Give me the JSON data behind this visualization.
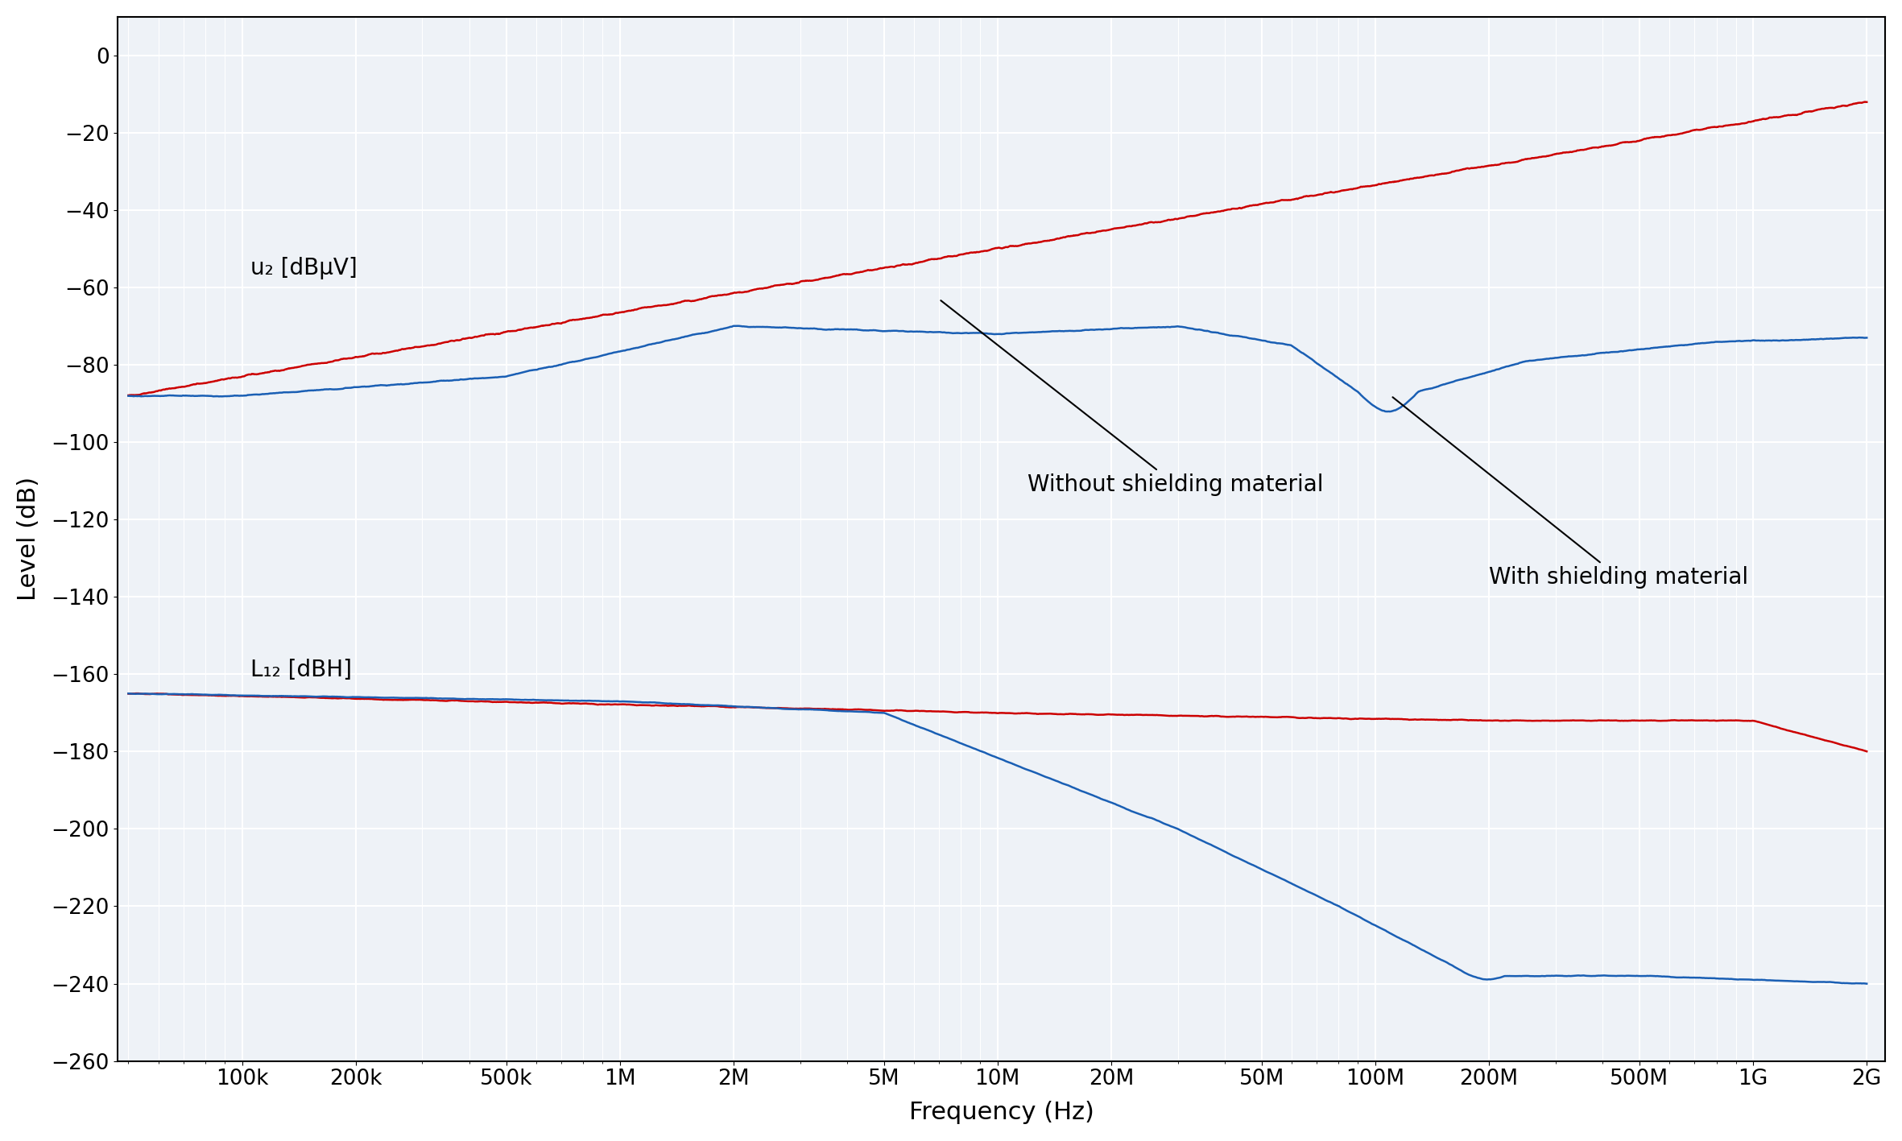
{
  "title": "",
  "xlabel": "Frequency (Hz)",
  "ylabel": "Level (dB)",
  "ylim": [
    -260,
    10
  ],
  "yticks": [
    0,
    -20,
    -40,
    -60,
    -80,
    -100,
    -120,
    -140,
    -160,
    -180,
    -200,
    -220,
    -240,
    -260
  ],
  "xtick_positions": [
    100000,
    200000,
    500000,
    1000000,
    2000000,
    5000000,
    10000000,
    20000000,
    50000000,
    100000000,
    200000000,
    500000000,
    1000000000,
    2000000000
  ],
  "xtick_labels": [
    "100k",
    "200k",
    "500k",
    "1M",
    "2M",
    "5M",
    "10M",
    "20M",
    "50M",
    "100M",
    "200M",
    "500M",
    "1G",
    "2G"
  ],
  "color_red": "#cc0000",
  "color_blue": "#1a5fb4",
  "background_color": "#eef2f7",
  "grid_color": "#ffffff",
  "label_u2": "u₂ [dBμV]",
  "label_L12": "L₁₂ [dBH]",
  "annotation_without": "Without shielding material",
  "annotation_with": "With shielding material",
  "linewidth": 1.8,
  "tick_fontsize": 19,
  "label_fontsize": 22,
  "annot_fontsize": 20
}
